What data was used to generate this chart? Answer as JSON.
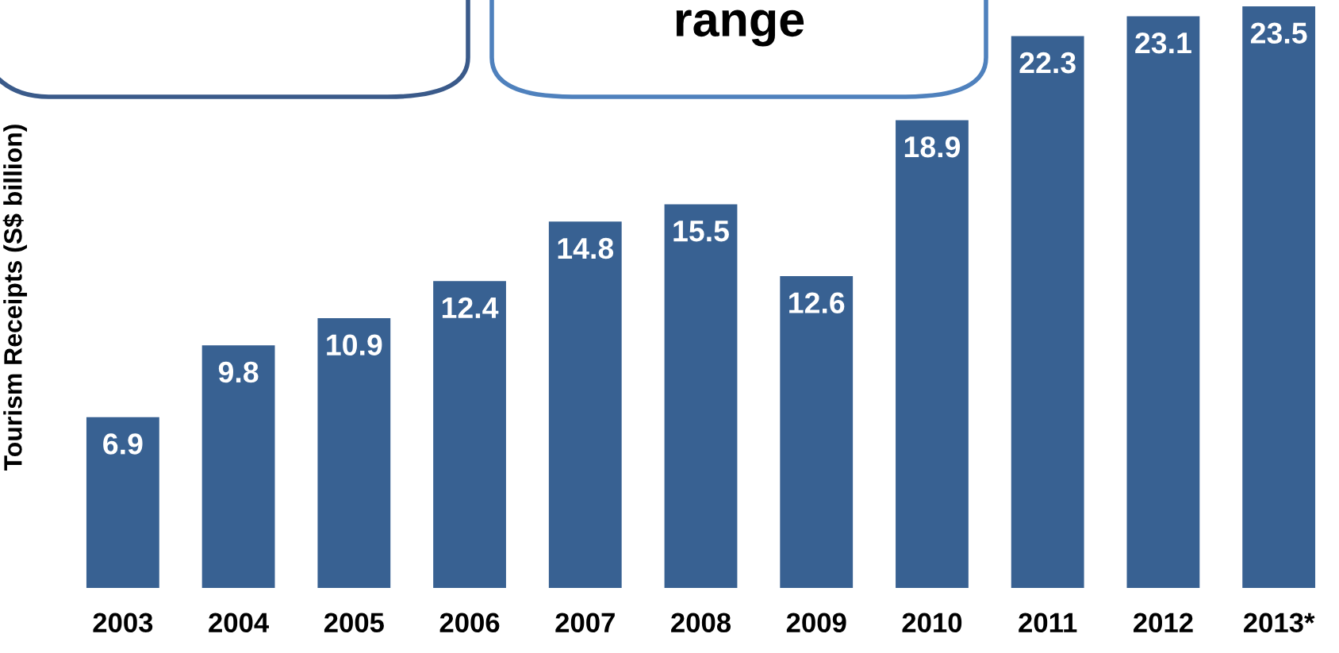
{
  "chart_data": {
    "type": "bar",
    "categories": [
      "2003",
      "2004",
      "2005",
      "2006",
      "2007",
      "2008",
      "2009",
      "2010",
      "2011",
      "2012",
      "2013*"
    ],
    "values": [
      6.9,
      9.8,
      10.9,
      12.4,
      14.8,
      15.5,
      12.6,
      18.9,
      22.3,
      23.1,
      23.5
    ],
    "color": "#386192",
    "ylabel": "Tourism Receipts (S$ billion)",
    "annotations": [
      "range"
    ],
    "data_labels": true,
    "tick_labels": "x",
    "grid": false,
    "legend": false
  }
}
